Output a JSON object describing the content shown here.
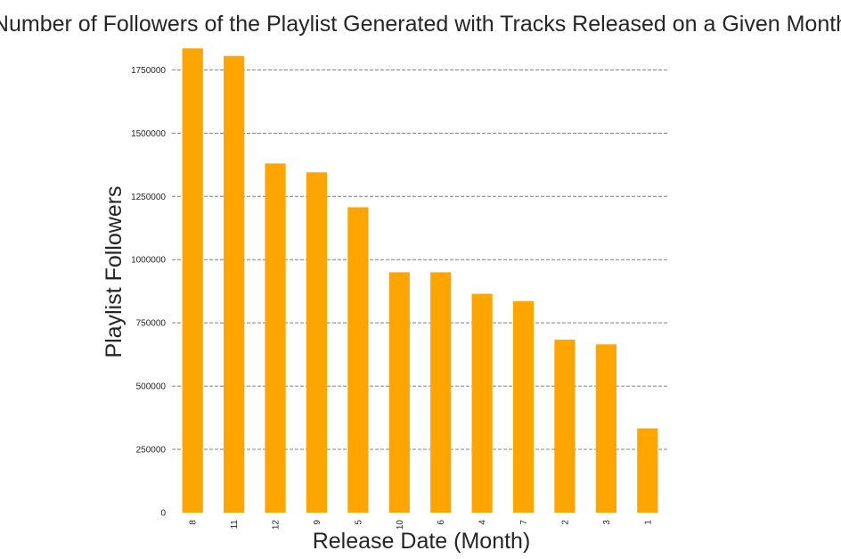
{
  "chart_data": {
    "type": "bar",
    "title": "Number of Followers of the Playlist Generated with Tracks Released on a Given Month",
    "xlabel": "Release Date (Month)",
    "ylabel": "Playlist Followers",
    "categories": [
      "8",
      "11",
      "12",
      "9",
      "5",
      "10",
      "6",
      "4",
      "7",
      "2",
      "3",
      "1"
    ],
    "values": [
      1835000,
      1805000,
      1380000,
      1345000,
      1207000,
      950000,
      950000,
      865000,
      836000,
      684000,
      665000,
      333000
    ],
    "ylim": [
      0,
      1850000
    ],
    "yticks": [
      0,
      250000,
      500000,
      750000,
      1000000,
      1250000,
      1500000,
      1750000
    ],
    "ytick_labels": [
      "0",
      "250000",
      "500000",
      "750000",
      "1000000",
      "1250000",
      "1500000",
      "1750000"
    ],
    "grid": "horizontal dashed",
    "colors": {
      "bar": "#ffa500",
      "grid": "#808080",
      "text": "#262626"
    }
  }
}
